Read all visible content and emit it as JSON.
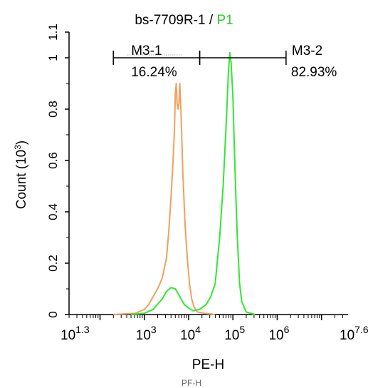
{
  "title": {
    "main": "bs-7709R-1 / ",
    "gate": "P1"
  },
  "ylabel": {
    "text": "Count",
    "exp_prefix": "(10",
    "exp": "3",
    "exp_suffix": ")"
  },
  "xlabel": "PE-H",
  "bottom_clip": "PF-H",
  "colors": {
    "control": "#f0a060",
    "sample": "#33e633",
    "axis": "#000000",
    "marker_dots": "#888888"
  },
  "chart_data": {
    "type": "line",
    "title": "bs-7709R-1 / P1",
    "xlabel": "PE-H",
    "ylabel": "Count (10^3)",
    "x_scale": "log10",
    "xlim_log10": [
      1.3,
      7.6
    ],
    "ylim": [
      0,
      1.1
    ],
    "x_ticks": [
      {
        "base": "10",
        "exp": "1.3",
        "log10": 1.3
      },
      {
        "base": "10",
        "exp": "3",
        "log10": 3
      },
      {
        "base": "10",
        "exp": "4",
        "log10": 4
      },
      {
        "base": "10",
        "exp": "5",
        "log10": 5
      },
      {
        "base": "10",
        "exp": "6",
        "log10": 6
      },
      {
        "base": "10",
        "exp": "7.6",
        "log10": 7.6
      }
    ],
    "y_ticks": [
      "0",
      "0.2",
      "0.4",
      "0.6",
      "0.8",
      "1",
      "1.1"
    ],
    "y_tick_values": [
      0,
      0.2,
      0.4,
      0.6,
      0.8,
      1,
      1.1
    ],
    "series": [
      {
        "role": "control",
        "points": [
          [
            2.3,
            0
          ],
          [
            2.8,
            0.005
          ],
          [
            3.0,
            0.02
          ],
          [
            3.1,
            0.04
          ],
          [
            3.2,
            0.07
          ],
          [
            3.3,
            0.1
          ],
          [
            3.4,
            0.14
          ],
          [
            3.5,
            0.22
          ],
          [
            3.55,
            0.32
          ],
          [
            3.6,
            0.45
          ],
          [
            3.65,
            0.6
          ],
          [
            3.68,
            0.72
          ],
          [
            3.7,
            0.86
          ],
          [
            3.72,
            0.9
          ],
          [
            3.74,
            0.82
          ],
          [
            3.76,
            0.8
          ],
          [
            3.78,
            0.82
          ],
          [
            3.8,
            0.9
          ],
          [
            3.83,
            0.78
          ],
          [
            3.87,
            0.55
          ],
          [
            3.92,
            0.35
          ],
          [
            3.97,
            0.22
          ],
          [
            4.02,
            0.12
          ],
          [
            4.07,
            0.06
          ],
          [
            4.12,
            0.03
          ],
          [
            4.2,
            0.01
          ],
          [
            4.35,
            0.005
          ],
          [
            4.6,
            0
          ]
        ]
      },
      {
        "role": "sample",
        "points": [
          [
            2.7,
            0
          ],
          [
            3.0,
            0.005
          ],
          [
            3.2,
            0.02
          ],
          [
            3.4,
            0.06
          ],
          [
            3.5,
            0.09
          ],
          [
            3.6,
            0.105
          ],
          [
            3.7,
            0.1
          ],
          [
            3.8,
            0.07
          ],
          [
            3.9,
            0.04
          ],
          [
            4.0,
            0.025
          ],
          [
            4.1,
            0.015
          ],
          [
            4.25,
            0.02
          ],
          [
            4.4,
            0.04
          ],
          [
            4.5,
            0.07
          ],
          [
            4.6,
            0.12
          ],
          [
            4.7,
            0.3
          ],
          [
            4.78,
            0.5
          ],
          [
            4.85,
            0.75
          ],
          [
            4.9,
            0.95
          ],
          [
            4.93,
            1.02
          ],
          [
            4.96,
            0.98
          ],
          [
            5.0,
            0.85
          ],
          [
            5.05,
            0.55
          ],
          [
            5.1,
            0.3
          ],
          [
            5.15,
            0.12
          ],
          [
            5.2,
            0.05
          ],
          [
            5.3,
            0.01
          ],
          [
            5.5,
            0
          ]
        ]
      }
    ],
    "markers": [
      {
        "name": "M3-1",
        "percent": "16.24%",
        "from_log10": 2.3,
        "to_log10": 4.25,
        "y": 1.0
      },
      {
        "name": "M3-2",
        "percent": "82.93%",
        "from_log10": 4.25,
        "to_log10": 6.2,
        "y": 1.0
      }
    ]
  }
}
